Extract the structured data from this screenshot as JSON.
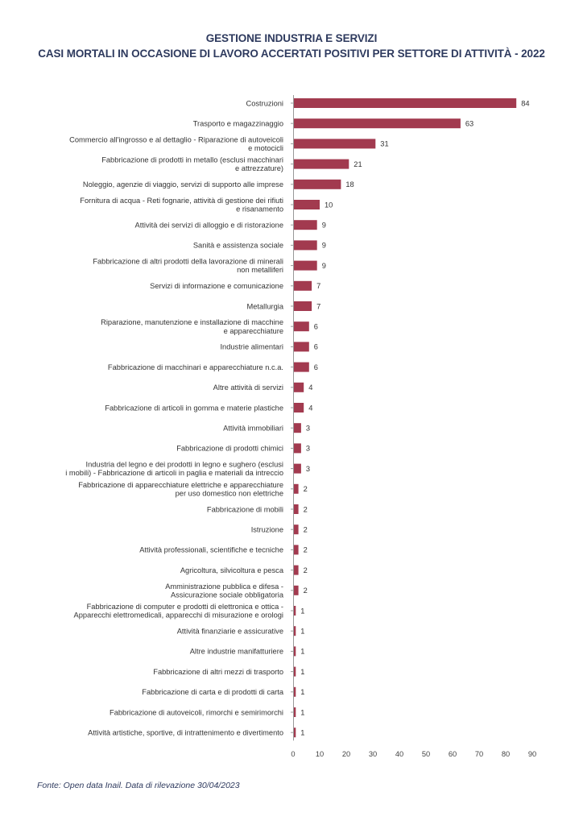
{
  "page": {
    "title_line1": "GESTIONE INDUSTRIA E SERVIZI",
    "title_line2": "CASI MORTALI IN OCCASIONE DI LAVORO ACCERTATI POSITIVI PER SETTORE DI ATTIVITÀ - 2022",
    "source": "Fonte: Open data Inail. Data di rilevazione 30/04/2023"
  },
  "chart_data": {
    "type": "bar",
    "orientation": "horizontal",
    "bar_color": "#a23a4f",
    "categories": [
      [
        "Costruzioni"
      ],
      [
        "Trasporto e magazzinaggio"
      ],
      [
        "Commercio all'ingrosso e al dettaglio - Riparazione di autoveicoli",
        "e motocicli"
      ],
      [
        "Fabbricazione di prodotti in metallo (esclusi macchinari",
        "e attrezzature)"
      ],
      [
        "Noleggio, agenzie di viaggio, servizi di supporto alle imprese"
      ],
      [
        "Fornitura di acqua - Reti fognarie, attività di gestione dei rifiuti",
        "e risanamento"
      ],
      [
        "Attività dei servizi di alloggio e di ristorazione"
      ],
      [
        "Sanità e assistenza sociale"
      ],
      [
        "Fabbricazione di altri prodotti della lavorazione di minerali",
        "non metalliferi"
      ],
      [
        "Servizi di informazione e comunicazione"
      ],
      [
        "Metallurgia"
      ],
      [
        "Riparazione, manutenzione e installazione di macchine",
        "e apparecchiature"
      ],
      [
        "Industrie alimentari"
      ],
      [
        "Fabbricazione di macchinari e apparecchiature n.c.a."
      ],
      [
        "Altre attività di servizi"
      ],
      [
        "Fabbricazione di articoli in gomma e materie plastiche"
      ],
      [
        "Attività immobiliari"
      ],
      [
        "Fabbricazione di prodotti chimici"
      ],
      [
        "Industria del legno e dei prodotti in legno e sughero (esclusi",
        "i mobili) - Fabbricazione di articoli in paglia e materiali da intreccio"
      ],
      [
        "Fabbricazione di apparecchiature elettriche e apparecchiature",
        "per uso domestico non elettriche"
      ],
      [
        "Fabbricazione di mobili"
      ],
      [
        "Istruzione"
      ],
      [
        "Attività professionali, scientifiche e tecniche"
      ],
      [
        "Agricoltura, silvicoltura e pesca"
      ],
      [
        "Amministrazione pubblica e difesa -",
        "Assicurazione sociale obbligatoria"
      ],
      [
        "Fabbricazione di computer e prodotti di elettronica e ottica -",
        "Apparecchi elettromedicali, apparecchi di misurazione e orologi"
      ],
      [
        "Attività finanziarie e assicurative"
      ],
      [
        "Altre industrie manifatturiere"
      ],
      [
        "Fabbricazione di altri mezzi di trasporto"
      ],
      [
        "Fabbricazione di carta e di prodotti di carta"
      ],
      [
        "Fabbricazione di autoveicoli, rimorchi e semirimorchi"
      ],
      [
        "Attività artistiche, sportive, di intrattenimento e divertimento"
      ]
    ],
    "values": [
      84,
      63,
      31,
      21,
      18,
      10,
      9,
      9,
      9,
      7,
      7,
      6,
      6,
      6,
      4,
      4,
      3,
      3,
      3,
      2,
      2,
      2,
      2,
      2,
      2,
      1,
      1,
      1,
      1,
      1,
      1,
      1
    ],
    "xlim": [
      0,
      90
    ],
    "xticks": [
      0,
      10,
      20,
      30,
      40,
      50,
      60,
      70,
      80,
      90
    ],
    "grid": false
  }
}
